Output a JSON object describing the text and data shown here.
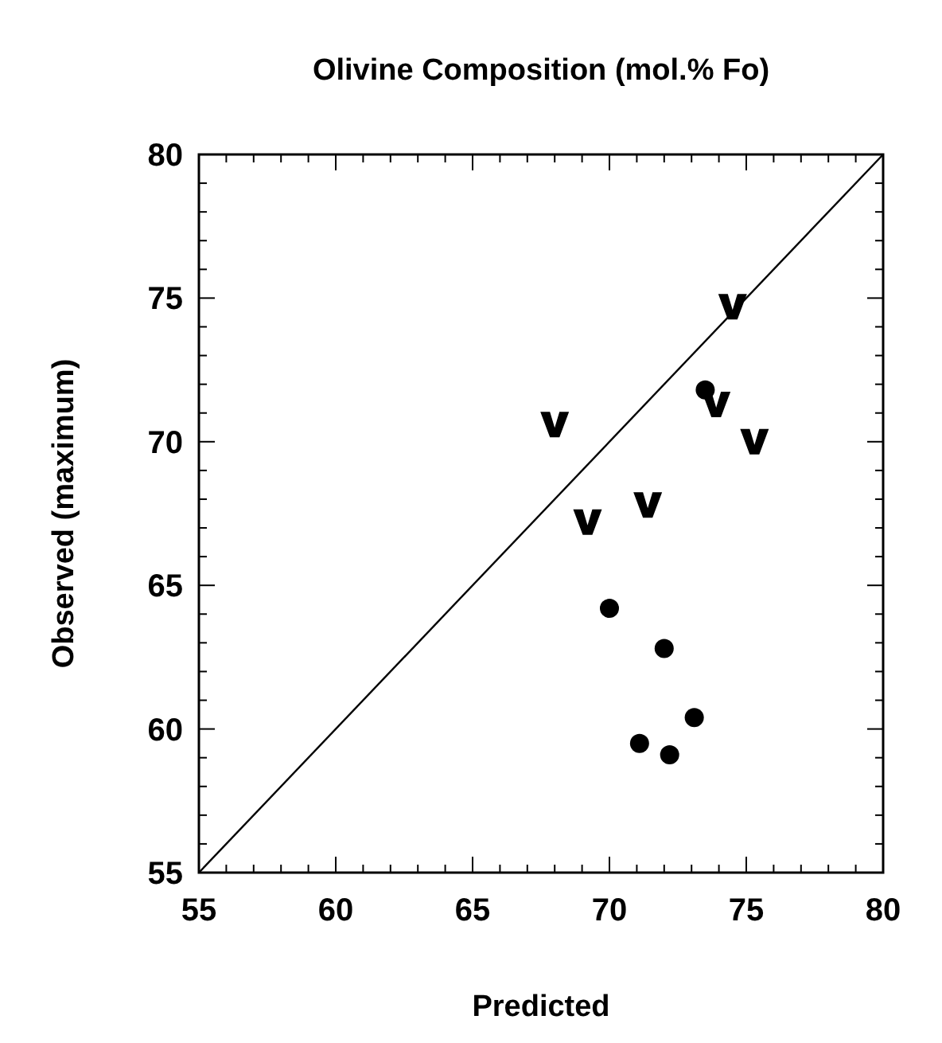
{
  "chart_data": {
    "type": "scatter",
    "title": "Olivine Composition (mol.% Fo)",
    "xlabel": "Predicted",
    "ylabel": "Observed (maximum)",
    "xlim": [
      55,
      80
    ],
    "ylim": [
      55,
      80
    ],
    "xticks": [
      55,
      60,
      65,
      70,
      75,
      80
    ],
    "yticks": [
      55,
      60,
      65,
      70,
      75,
      80
    ],
    "grid": false,
    "series": [
      {
        "type": "line",
        "color": "#000000",
        "marker": "none",
        "line_style": "solid",
        "x": [
          55,
          80
        ],
        "values": [
          55,
          80
        ]
      },
      {
        "color": "#000000",
        "marker": "circle",
        "x": [
          70.0,
          72.0,
          71.1,
          72.2,
          73.1,
          73.5
        ],
        "values": [
          64.2,
          62.8,
          59.5,
          59.1,
          60.4,
          71.8
        ]
      },
      {
        "color": "#000000",
        "marker": "triangle",
        "x": [
          74.5,
          68.0,
          73.9,
          75.3,
          69.2,
          71.4
        ],
        "values": [
          74.7,
          70.6,
          71.3,
          70.0,
          67.2,
          67.8
        ]
      }
    ]
  }
}
